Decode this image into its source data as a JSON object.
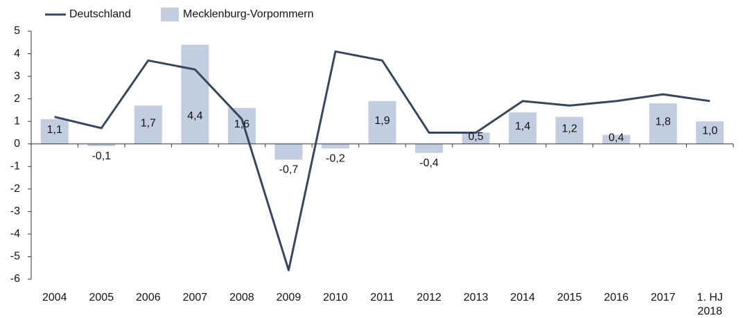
{
  "chart_data": {
    "type": "bar_line",
    "categories": [
      "2004",
      "2005",
      "2006",
      "2007",
      "2008",
      "2009",
      "2010",
      "2011",
      "2012",
      "2013",
      "2014",
      "2015",
      "2016",
      "2017",
      "1. HJ\n2018"
    ],
    "series": [
      {
        "name": "Deutschland",
        "type": "line",
        "color": "#34475f",
        "values": [
          1.2,
          0.7,
          3.7,
          3.3,
          1.1,
          -5.6,
          4.1,
          3.7,
          0.5,
          0.5,
          1.9,
          1.7,
          1.9,
          2.2,
          1.9
        ]
      },
      {
        "name": "Mecklenburg-Vorpommern",
        "type": "bar",
        "color": "#c3cde0",
        "values": [
          1.1,
          -0.1,
          1.7,
          4.4,
          1.6,
          -0.7,
          -0.2,
          1.9,
          -0.4,
          0.5,
          1.4,
          1.2,
          0.4,
          1.8,
          1.0
        ],
        "value_labels": [
          "1,1",
          "-0,1",
          "1,7",
          "4,4",
          "1,6",
          "-0,7",
          "-0,2",
          "1,9",
          "-0,4",
          "0,5",
          "1,4",
          "1,2",
          "0,4",
          "1,8",
          "1,0"
        ]
      }
    ],
    "ylim": [
      -6,
      5
    ],
    "yticks": [
      -6,
      -5,
      -4,
      -3,
      -2,
      -1,
      0,
      1,
      2,
      3,
      4,
      5
    ],
    "legend": "top-left"
  }
}
